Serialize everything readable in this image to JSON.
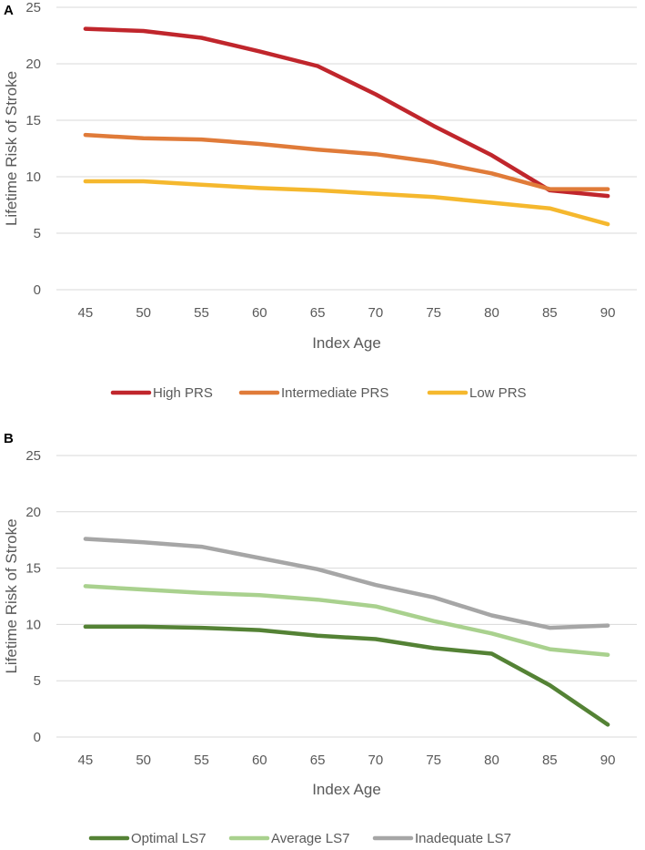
{
  "chart_data": [
    {
      "type": "line",
      "panel": "A",
      "title": "",
      "xlabel": "Index Age",
      "ylabel": "Lifetime Risk of Stroke",
      "ylim": [
        0,
        25
      ],
      "yticks": [
        0,
        5,
        10,
        15,
        20,
        25
      ],
      "grid": true,
      "legend": "bottom",
      "x": [
        45,
        50,
        55,
        60,
        65,
        70,
        75,
        80,
        85,
        90
      ],
      "series": [
        {
          "name": "High PRS",
          "color": "#c0262c",
          "values": [
            23.1,
            22.9,
            22.3,
            21.1,
            19.8,
            17.3,
            14.5,
            11.9,
            8.8,
            8.3
          ]
        },
        {
          "name": "Intermediate PRS",
          "color": "#e07b39",
          "values": [
            13.7,
            13.4,
            13.3,
            12.9,
            12.4,
            12.0,
            11.3,
            10.3,
            8.9,
            8.9
          ]
        },
        {
          "name": "Low PRS",
          "color": "#f5b82e",
          "values": [
            9.6,
            9.6,
            9.3,
            9.0,
            8.8,
            8.5,
            8.2,
            7.7,
            7.2,
            5.8
          ]
        }
      ]
    },
    {
      "type": "line",
      "panel": "B",
      "title": "",
      "xlabel": "Index Age",
      "ylabel": "Lifetime Risk of Stroke",
      "ylim": [
        0,
        25
      ],
      "yticks": [
        0,
        5,
        10,
        15,
        20,
        25
      ],
      "grid": true,
      "legend": "bottom",
      "x": [
        45,
        50,
        55,
        60,
        65,
        70,
        75,
        80,
        85,
        90
      ],
      "series": [
        {
          "name": "Optimal LS7",
          "color": "#548235",
          "values": [
            9.8,
            9.8,
            9.7,
            9.5,
            9.0,
            8.7,
            7.9,
            7.4,
            4.6,
            1.1
          ]
        },
        {
          "name": "Average LS7",
          "color": "#a9d18e",
          "values": [
            13.4,
            13.1,
            12.8,
            12.6,
            12.2,
            11.6,
            10.3,
            9.2,
            7.8,
            7.3
          ]
        },
        {
          "name": "Inadequate LS7",
          "color": "#a6a6a6",
          "values": [
            17.6,
            17.3,
            16.9,
            15.9,
            14.9,
            13.5,
            12.4,
            10.8,
            9.7,
            9.9
          ]
        }
      ]
    }
  ]
}
